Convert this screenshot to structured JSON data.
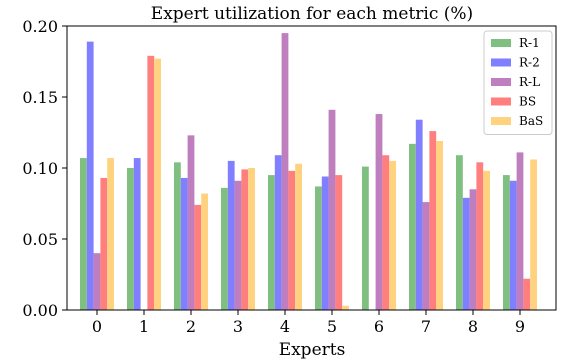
{
  "chart_data": {
    "type": "bar",
    "title": "Expert utilization for each metric (%)",
    "xlabel": "Experts",
    "ylabel": "",
    "categories": [
      "0",
      "1",
      "2",
      "3",
      "4",
      "5",
      "6",
      "7",
      "8",
      "9"
    ],
    "ylim": [
      0,
      0.2
    ],
    "yticks": [
      "0.00",
      "0.05",
      "0.10",
      "0.15",
      "0.20"
    ],
    "legend_position": "top-right",
    "grid": false,
    "series": [
      {
        "name": "R-1",
        "color": "#7fbf7f",
        "values": [
          0.107,
          0.1,
          0.104,
          0.086,
          0.095,
          0.087,
          0.101,
          0.117,
          0.109,
          0.095
        ]
      },
      {
        "name": "R-2",
        "color": "#7f7fff",
        "values": [
          0.189,
          0.107,
          0.093,
          0.105,
          0.109,
          0.094,
          0.0,
          0.134,
          0.079,
          0.091
        ]
      },
      {
        "name": "R-L",
        "color": "#bf7fbf",
        "values": [
          0.04,
          0.0,
          0.123,
          0.091,
          0.195,
          0.141,
          0.138,
          0.076,
          0.085,
          0.111
        ]
      },
      {
        "name": "BS",
        "color": "#ff7f7f",
        "values": [
          0.093,
          0.179,
          0.074,
          0.099,
          0.098,
          0.095,
          0.109,
          0.126,
          0.104,
          0.022
        ]
      },
      {
        "name": "BaS",
        "color": "#ffd27f",
        "values": [
          0.107,
          0.177,
          0.082,
          0.1,
          0.103,
          0.003,
          0.105,
          0.119,
          0.098,
          0.106
        ]
      }
    ]
  }
}
